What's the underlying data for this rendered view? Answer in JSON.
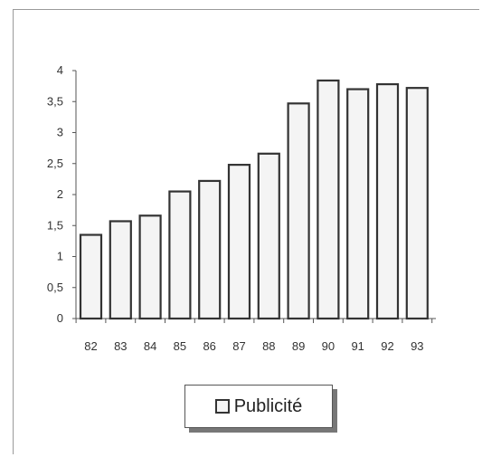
{
  "chart_data": {
    "type": "bar",
    "categories": [
      "82",
      "83",
      "84",
      "85",
      "86",
      "87",
      "88",
      "89",
      "90",
      "91",
      "92",
      "93"
    ],
    "series": [
      {
        "name": "Publicité",
        "values": [
          1.35,
          1.57,
          1.66,
          2.05,
          2.22,
          2.48,
          2.66,
          3.47,
          3.84,
          3.7,
          3.78,
          3.72
        ]
      }
    ],
    "yticks": [
      "0",
      "0,5",
      "1",
      "1,5",
      "2",
      "2,5",
      "3",
      "3,5",
      "4"
    ],
    "ylim": [
      0,
      4
    ],
    "grid": false,
    "legend_position": "bottom-center",
    "bar_fill": "#f4f4f4",
    "bar_stroke": "#333333",
    "axis_color": "#555555"
  }
}
